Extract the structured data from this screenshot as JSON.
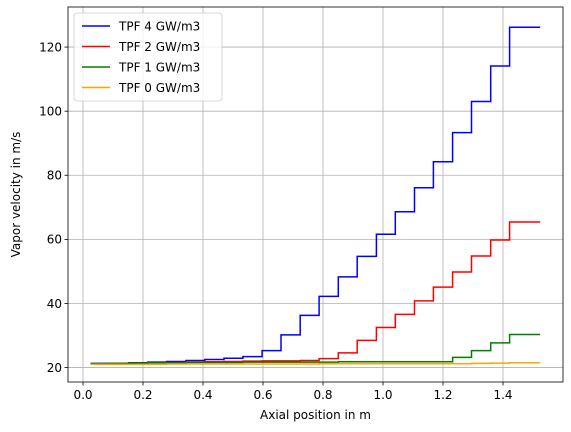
{
  "chart_data": {
    "type": "line",
    "step": "post",
    "xlabel": "Axial position in m",
    "ylabel": "Vapor velocity in m/s",
    "xlim": [
      -0.05,
      1.6
    ],
    "ylim": [
      15.5,
      132.5
    ],
    "xticks": [
      0.0,
      0.2,
      0.4,
      0.6,
      0.8,
      1.0,
      1.2,
      1.4
    ],
    "xtick_labels": [
      "0.0",
      "0.2",
      "0.4",
      "0.6",
      "0.8",
      "1.0",
      "1.2",
      "1.4"
    ],
    "yticks": [
      20,
      40,
      60,
      80,
      100,
      120
    ],
    "ytick_labels": [
      "20",
      "40",
      "60",
      "80",
      "100",
      "120"
    ],
    "grid": true,
    "legend_position": "top-left",
    "x": [
      0.025,
      0.089,
      0.152,
      0.216,
      0.279,
      0.343,
      0.406,
      0.47,
      0.533,
      0.597,
      0.66,
      0.724,
      0.787,
      0.851,
      0.914,
      0.978,
      1.041,
      1.105,
      1.168,
      1.232,
      1.295,
      1.359,
      1.422,
      1.486,
      1.524
    ],
    "series": [
      {
        "name": "TPF 4 GW/m3",
        "color": "#0000ff",
        "values": [
          21.3,
          21.3,
          21.5,
          21.7,
          21.9,
          22.2,
          22.5,
          22.9,
          23.4,
          25.3,
          30.2,
          36.3,
          42.2,
          48.3,
          54.7,
          61.6,
          68.6,
          76.1,
          84.2,
          93.3,
          103.0,
          114.1,
          126.2,
          126.2,
          126.2
        ]
      },
      {
        "name": "TPF 2 GW/m3",
        "color": "#ff0000",
        "values": [
          21.2,
          21.3,
          21.4,
          21.5,
          21.6,
          21.7,
          21.8,
          21.9,
          22.0,
          22.1,
          22.1,
          22.2,
          22.8,
          24.6,
          28.5,
          32.5,
          36.6,
          40.8,
          45.1,
          49.8,
          54.8,
          59.8,
          65.4,
          65.4,
          65.4
        ]
      },
      {
        "name": "TPF 1 GW/m3",
        "color": "#008000",
        "values": [
          21.2,
          21.3,
          21.4,
          21.5,
          21.5,
          21.6,
          21.6,
          21.6,
          21.7,
          21.7,
          21.7,
          21.7,
          21.7,
          21.8,
          21.8,
          21.8,
          21.8,
          21.8,
          21.8,
          23.2,
          25.3,
          27.7,
          30.3,
          30.3,
          30.3
        ]
      },
      {
        "name": "TPF 0 GW/m3",
        "color": "#ffa500",
        "values": [
          21.0,
          21.0,
          21.0,
          21.0,
          21.1,
          21.1,
          21.1,
          21.1,
          21.1,
          21.1,
          21.1,
          21.1,
          21.2,
          21.2,
          21.2,
          21.2,
          21.2,
          21.2,
          21.2,
          21.2,
          21.3,
          21.4,
          21.5,
          21.5,
          21.5
        ]
      }
    ]
  }
}
